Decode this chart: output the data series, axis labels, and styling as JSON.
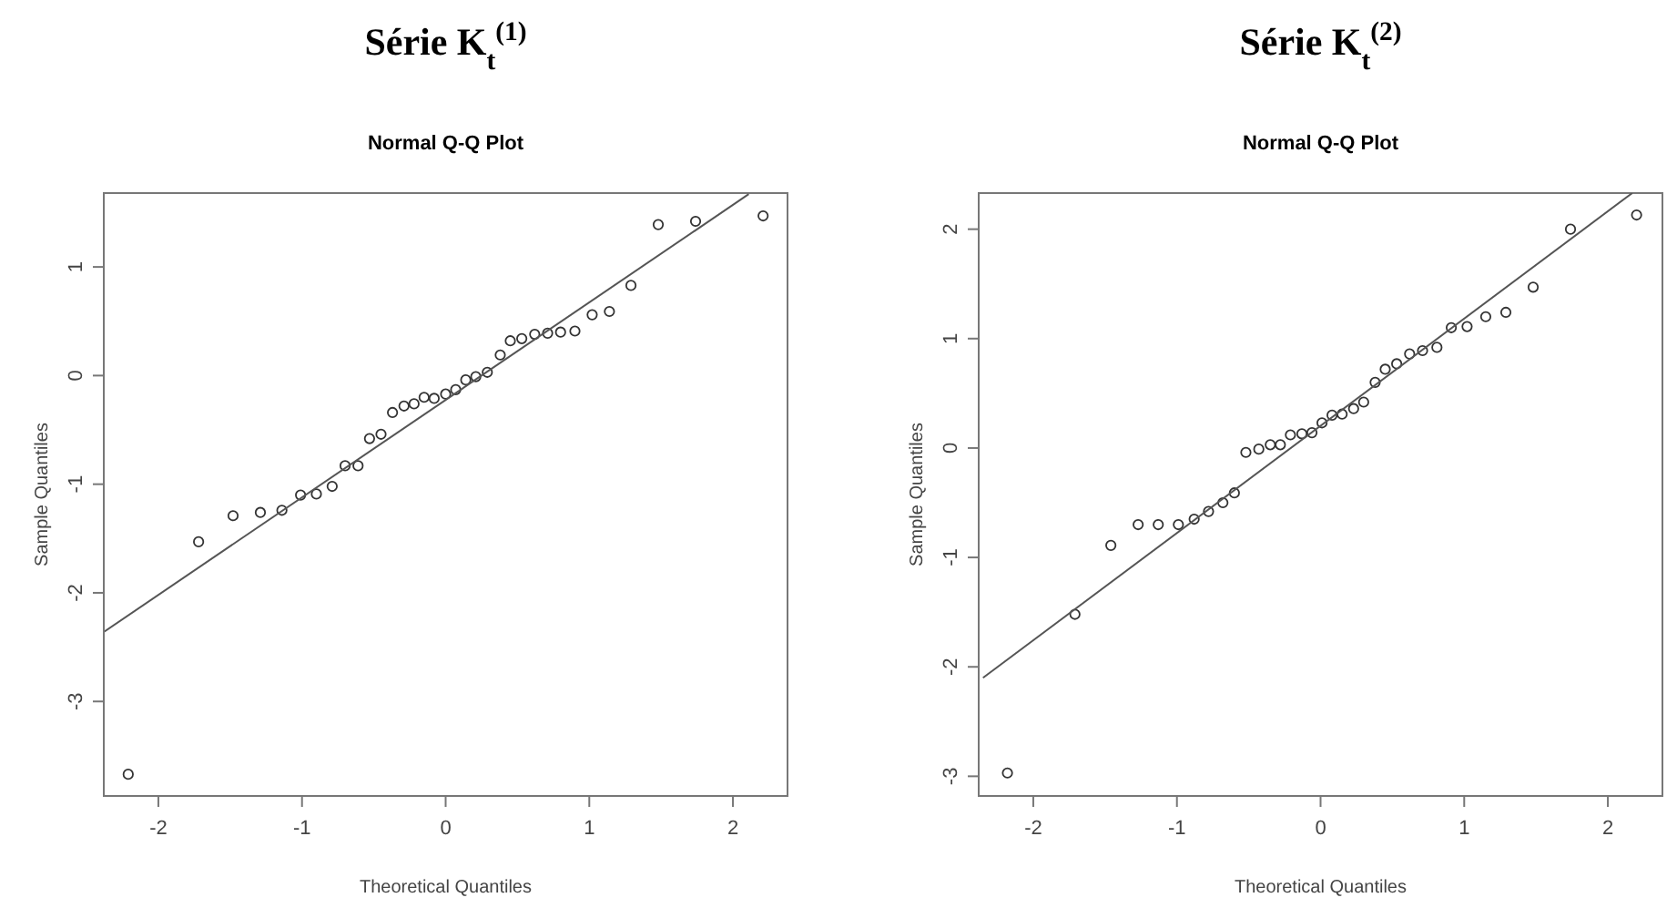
{
  "chart_data": [
    {
      "type": "scatter",
      "title": "Série K$_{t}$$^{(1)}$",
      "subtitle": "Normal Q-Q Plot",
      "xlabel": "Theoretical Quantiles",
      "ylabel": "Sample Quantiles",
      "xlim": [
        -2.38,
        2.38
      ],
      "ylim": [
        -3.87,
        1.68
      ],
      "xticks": [
        -2,
        -1,
        0,
        1,
        2
      ],
      "yticks": [
        -3,
        -2,
        -1,
        0,
        1
      ],
      "grid": false,
      "series": [
        {
          "marker": "circle",
          "color": "#333333",
          "x": [
            -2.21,
            -1.72,
            -1.48,
            -1.29,
            -1.14,
            -1.01,
            -0.9,
            -0.79,
            -0.7,
            -0.61,
            -0.53,
            -0.45,
            -0.37,
            -0.29,
            -0.22,
            -0.15,
            -0.08,
            0.0,
            0.07,
            0.14,
            0.21,
            0.29,
            0.38,
            0.45,
            0.53,
            0.62,
            0.71,
            0.8,
            0.9,
            1.02,
            1.14,
            1.29,
            1.48,
            1.74,
            2.21
          ],
          "values": [
            -3.67,
            -1.53,
            -1.29,
            -1.26,
            -1.24,
            -1.1,
            -1.09,
            -1.02,
            -0.83,
            -0.83,
            -0.58,
            -0.54,
            -0.34,
            -0.28,
            -0.26,
            -0.2,
            -0.21,
            -0.17,
            -0.13,
            -0.04,
            -0.01,
            0.03,
            0.19,
            0.32,
            0.34,
            0.38,
            0.39,
            0.4,
            0.41,
            0.56,
            0.59,
            0.83,
            1.39,
            1.42,
            1.47
          ]
        },
        {
          "type": "line",
          "color": "#555555",
          "x": [
            -2.38,
            2.11
          ],
          "values": [
            -2.36,
            1.67
          ]
        }
      ]
    },
    {
      "type": "scatter",
      "title": "Série K$_{t}$$^{(2)}$",
      "subtitle": "Normal Q-Q Plot",
      "xlabel": "Theoretical Quantiles",
      "ylabel": "Sample Quantiles",
      "xlim": [
        -2.38,
        2.38
      ],
      "ylim": [
        -3.18,
        2.33
      ],
      "xticks": [
        -2,
        -1,
        0,
        1,
        2
      ],
      "yticks": [
        -3,
        -2,
        -1,
        0,
        1,
        2
      ],
      "grid": false,
      "series": [
        {
          "marker": "circle",
          "color": "#333333",
          "x": [
            -2.18,
            -1.71,
            -1.46,
            -1.27,
            -1.13,
            -0.99,
            -0.88,
            -0.78,
            -0.68,
            -0.6,
            -0.52,
            -0.43,
            -0.35,
            -0.28,
            -0.21,
            -0.13,
            -0.06,
            0.01,
            0.08,
            0.15,
            0.23,
            0.3,
            0.38,
            0.45,
            0.53,
            0.62,
            0.71,
            0.81,
            0.91,
            1.02,
            1.15,
            1.29,
            1.48,
            1.74,
            2.2
          ],
          "values": [
            -2.97,
            -1.52,
            -0.89,
            -0.7,
            -0.7,
            -0.7,
            -0.65,
            -0.58,
            -0.5,
            -0.41,
            -0.04,
            -0.01,
            0.03,
            0.03,
            0.12,
            0.13,
            0.14,
            0.23,
            0.3,
            0.31,
            0.36,
            0.42,
            0.6,
            0.72,
            0.77,
            0.86,
            0.89,
            0.92,
            1.1,
            1.11,
            1.2,
            1.24,
            1.47,
            2.0,
            2.13
          ]
        },
        {
          "type": "line",
          "color": "#555555",
          "x": [
            -2.35,
            2.17
          ],
          "values": [
            -2.1,
            2.33
          ]
        }
      ]
    }
  ]
}
